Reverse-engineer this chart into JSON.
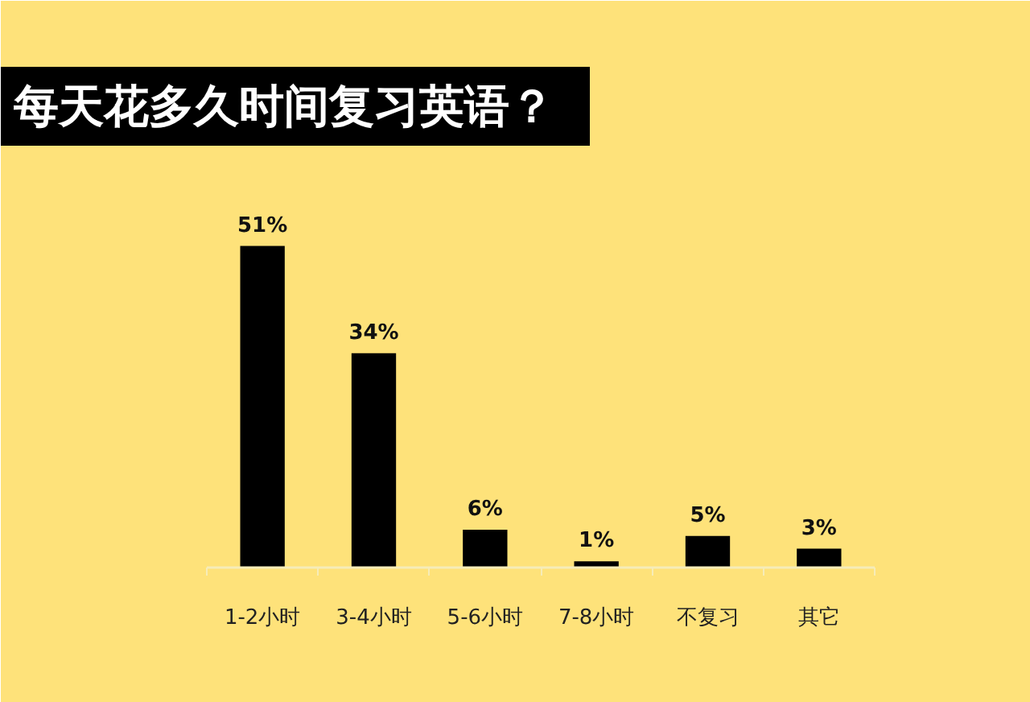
{
  "chart_data": {
    "type": "bar",
    "title": "每天花多久时间复习英语？",
    "categories": [
      "1-2小时",
      "3-4小时",
      "5-6小时",
      "7-8小时",
      "不复习",
      "其它"
    ],
    "values": [
      51,
      34,
      6,
      1,
      5,
      3
    ],
    "color": "#000000",
    "value_labels": [
      "51%",
      "34%",
      "6%",
      "1%",
      "5%",
      "3%"
    ],
    "ylim": [
      0,
      60
    ],
    "tick_labels": "x"
  }
}
